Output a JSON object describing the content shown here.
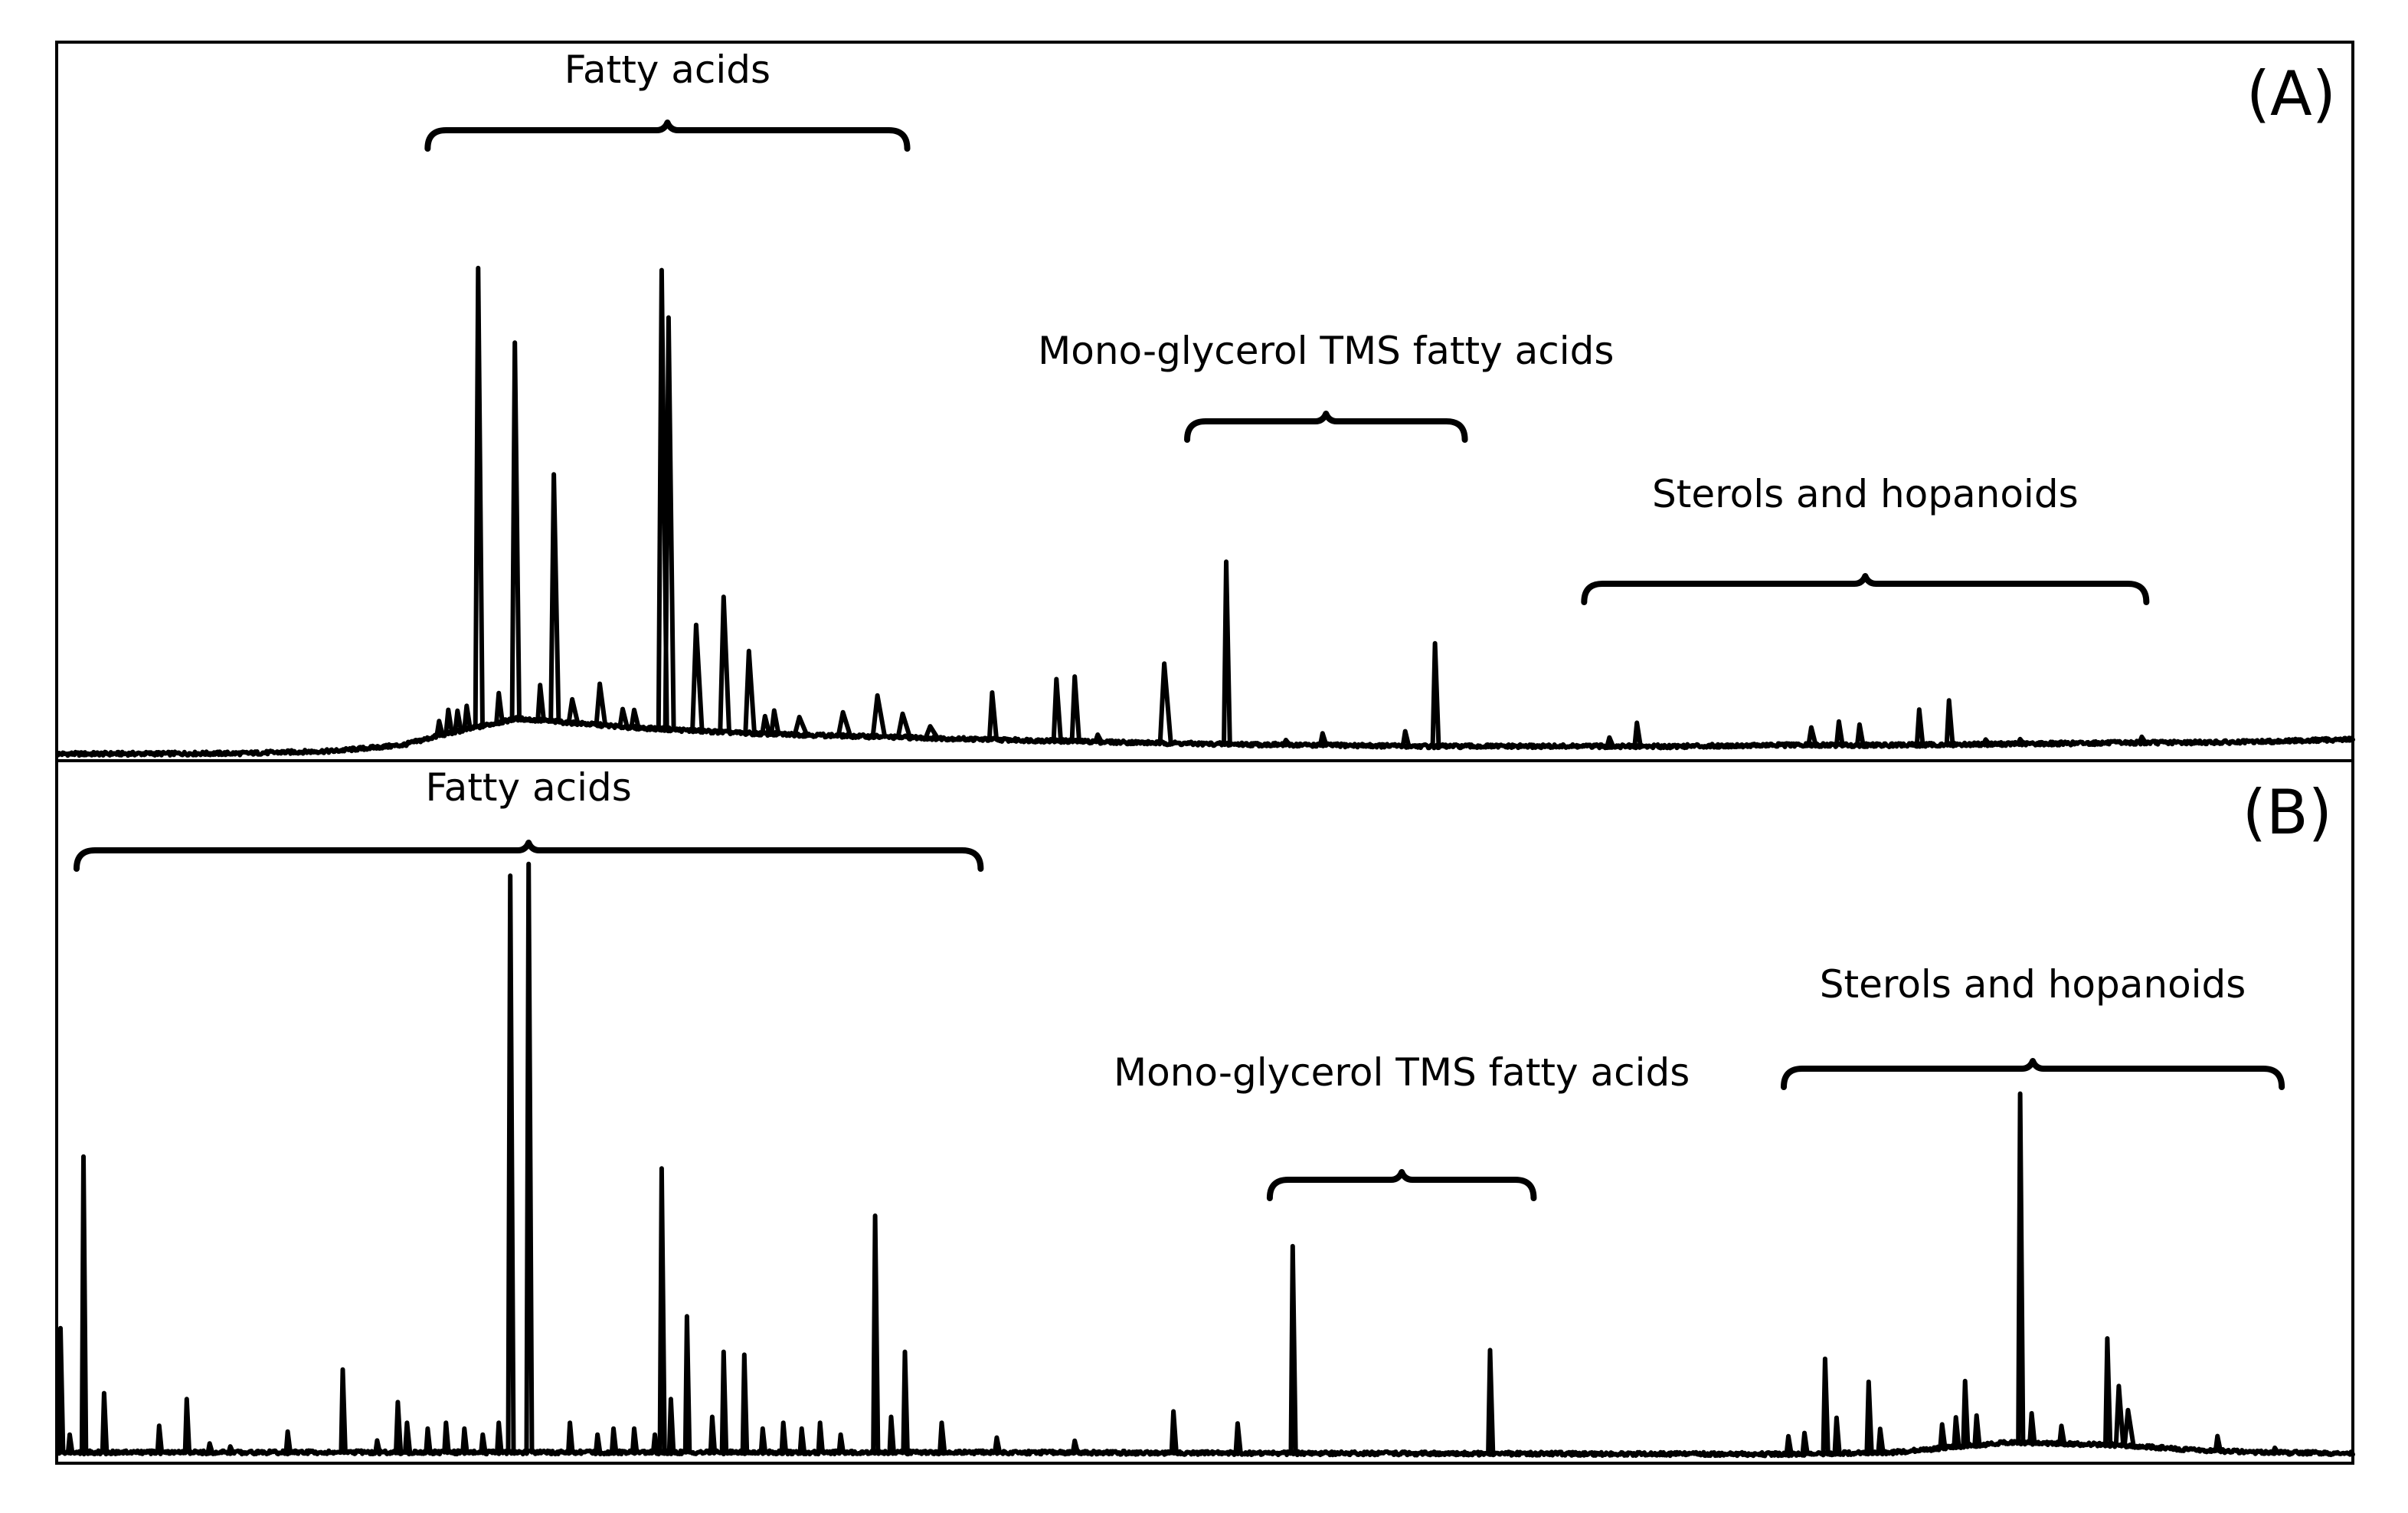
{
  "chart_data": [
    {
      "type": "line",
      "panel_label": "(A)",
      "title": "",
      "xlabel": "",
      "ylabel": "",
      "xlim": [
        0,
        100
      ],
      "ylim": [
        0,
        100
      ],
      "baseline_points": [
        [
          0,
          0.5
        ],
        [
          8,
          0.6
        ],
        [
          12,
          1.0
        ],
        [
          15,
          2
        ],
        [
          17,
          4
        ],
        [
          20,
          6.5
        ],
        [
          25,
          5
        ],
        [
          30,
          4
        ],
        [
          35,
          3.5
        ],
        [
          40,
          3
        ],
        [
          45,
          2.6
        ],
        [
          50,
          2.2
        ],
        [
          55,
          2
        ],
        [
          60,
          1.8
        ],
        [
          65,
          1.8
        ],
        [
          70,
          1.8
        ],
        [
          75,
          2
        ],
        [
          80,
          2
        ],
        [
          85,
          2.2
        ],
        [
          90,
          2.4
        ],
        [
          95,
          2.5
        ],
        [
          100,
          3
        ]
      ],
      "peaks": [
        {
          "x": 16.6,
          "h": 2.5,
          "w": 0.1
        },
        {
          "x": 17.0,
          "h": 4,
          "w": 0.1
        },
        {
          "x": 17.4,
          "h": 3.5,
          "w": 0.1
        },
        {
          "x": 17.8,
          "h": 4,
          "w": 0.1
        },
        {
          "x": 18.3,
          "h": 78,
          "w": 0.12
        },
        {
          "x": 19.2,
          "h": 5,
          "w": 0.1
        },
        {
          "x": 19.9,
          "h": 64,
          "w": 0.12
        },
        {
          "x": 21.0,
          "h": 6,
          "w": 0.1
        },
        {
          "x": 21.6,
          "h": 42,
          "w": 0.13
        },
        {
          "x": 22.4,
          "h": 4,
          "w": 0.15
        },
        {
          "x": 23.6,
          "h": 7,
          "w": 0.15
        },
        {
          "x": 24.6,
          "h": 3,
          "w": 0.12
        },
        {
          "x": 25.1,
          "h": 3,
          "w": 0.12
        },
        {
          "x": 26.3,
          "h": 78,
          "w": 0.14
        },
        {
          "x": 26.6,
          "h": 70,
          "w": 0.14
        },
        {
          "x": 27.8,
          "h": 18,
          "w": 0.16
        },
        {
          "x": 29.0,
          "h": 23,
          "w": 0.15
        },
        {
          "x": 30.1,
          "h": 14,
          "w": 0.15
        },
        {
          "x": 30.8,
          "h": 3,
          "w": 0.12
        },
        {
          "x": 31.2,
          "h": 4,
          "w": 0.12
        },
        {
          "x": 32.3,
          "h": 3,
          "w": 0.2
        },
        {
          "x": 34.2,
          "h": 4,
          "w": 0.2
        },
        {
          "x": 35.7,
          "h": 7,
          "w": 0.2
        },
        {
          "x": 36.8,
          "h": 4,
          "w": 0.2
        },
        {
          "x": 38.0,
          "h": 2,
          "w": 0.2
        },
        {
          "x": 40.7,
          "h": 8,
          "w": 0.12
        },
        {
          "x": 43.5,
          "h": 10.5,
          "w": 0.12
        },
        {
          "x": 44.3,
          "h": 11,
          "w": 0.12
        },
        {
          "x": 45.3,
          "h": 1.2,
          "w": 0.1
        },
        {
          "x": 48.2,
          "h": 13.5,
          "w": 0.18
        },
        {
          "x": 50.9,
          "h": 31,
          "w": 0.1
        },
        {
          "x": 53.5,
          "h": 0.8,
          "w": 0.1
        },
        {
          "x": 55.1,
          "h": 2,
          "w": 0.1
        },
        {
          "x": 58.7,
          "h": 2.5,
          "w": 0.1
        },
        {
          "x": 60.0,
          "h": 17.5,
          "w": 0.1
        },
        {
          "x": 67.6,
          "h": 1.5,
          "w": 0.1
        },
        {
          "x": 68.8,
          "h": 4,
          "w": 0.1
        },
        {
          "x": 76.4,
          "h": 3,
          "w": 0.12
        },
        {
          "x": 77.6,
          "h": 4,
          "w": 0.1
        },
        {
          "x": 78.5,
          "h": 3.5,
          "w": 0.1
        },
        {
          "x": 81.1,
          "h": 6,
          "w": 0.1
        },
        {
          "x": 82.4,
          "h": 7.5,
          "w": 0.1
        },
        {
          "x": 84.0,
          "h": 0.8,
          "w": 0.1
        },
        {
          "x": 85.5,
          "h": 0.8,
          "w": 0.1
        },
        {
          "x": 90.8,
          "h": 1.0,
          "w": 0.1
        }
      ],
      "annotations": [
        {
          "text": "Fatty acids",
          "x_start": 16.1,
          "x_end": 37.0
        },
        {
          "text": "Mono-glycerol TMS fatty acids",
          "x_start": 49.2,
          "x_end": 61.3
        },
        {
          "text": "Sterols and hopanoids",
          "x_start": 66.5,
          "x_end": 91.0
        }
      ]
    },
    {
      "type": "line",
      "panel_label": "(B)",
      "title": "",
      "xlabel": "",
      "ylabel": "",
      "xlim": [
        0,
        100
      ],
      "ylim": [
        0,
        100
      ],
      "baseline_points": [
        [
          0,
          0.8
        ],
        [
          20,
          0.8
        ],
        [
          40,
          0.8
        ],
        [
          60,
          0.6
        ],
        [
          75,
          0.5
        ],
        [
          80,
          0.8
        ],
        [
          85,
          2.5
        ],
        [
          90,
          2
        ],
        [
          93,
          1.2
        ],
        [
          96,
          0.8
        ],
        [
          100,
          0.6
        ]
      ],
      "peaks": [
        {
          "x": 0.1,
          "h": 21,
          "w": 0.07
        },
        {
          "x": 0.5,
          "h": 3,
          "w": 0.07
        },
        {
          "x": 1.1,
          "h": 50,
          "w": 0.07
        },
        {
          "x": 2.0,
          "h": 10,
          "w": 0.07
        },
        {
          "x": 4.4,
          "h": 4.5,
          "w": 0.07
        },
        {
          "x": 5.6,
          "h": 9,
          "w": 0.07
        },
        {
          "x": 6.6,
          "h": 1.5,
          "w": 0.07
        },
        {
          "x": 7.5,
          "h": 1,
          "w": 0.07
        },
        {
          "x": 10.0,
          "h": 3.5,
          "w": 0.07
        },
        {
          "x": 12.4,
          "h": 14,
          "w": 0.07
        },
        {
          "x": 13.9,
          "h": 2,
          "w": 0.07
        },
        {
          "x": 14.8,
          "h": 8.5,
          "w": 0.08
        },
        {
          "x": 15.2,
          "h": 5,
          "w": 0.08
        },
        {
          "x": 16.1,
          "h": 4,
          "w": 0.07
        },
        {
          "x": 16.9,
          "h": 5,
          "w": 0.07
        },
        {
          "x": 17.7,
          "h": 4,
          "w": 0.07
        },
        {
          "x": 18.5,
          "h": 3,
          "w": 0.07
        },
        {
          "x": 19.2,
          "h": 5,
          "w": 0.07
        },
        {
          "x": 19.7,
          "h": 97.5,
          "w": 0.09
        },
        {
          "x": 20.5,
          "h": 99.5,
          "w": 0.09
        },
        {
          "x": 22.3,
          "h": 5,
          "w": 0.07
        },
        {
          "x": 23.5,
          "h": 3,
          "w": 0.07
        },
        {
          "x": 24.2,
          "h": 4,
          "w": 0.07
        },
        {
          "x": 25.1,
          "h": 4,
          "w": 0.07
        },
        {
          "x": 26.0,
          "h": 3,
          "w": 0.07
        },
        {
          "x": 26.7,
          "h": 9,
          "w": 0.07
        },
        {
          "x": 26.3,
          "h": 48,
          "w": 0.08
        },
        {
          "x": 27.4,
          "h": 23,
          "w": 0.07
        },
        {
          "x": 28.5,
          "h": 6,
          "w": 0.07
        },
        {
          "x": 29.0,
          "h": 17,
          "w": 0.07
        },
        {
          "x": 29.9,
          "h": 16.5,
          "w": 0.07
        },
        {
          "x": 30.7,
          "h": 4,
          "w": 0.07
        },
        {
          "x": 31.6,
          "h": 5,
          "w": 0.07
        },
        {
          "x": 32.4,
          "h": 4,
          "w": 0.07
        },
        {
          "x": 33.2,
          "h": 5,
          "w": 0.07
        },
        {
          "x": 34.1,
          "h": 3,
          "w": 0.07
        },
        {
          "x": 35.6,
          "h": 40,
          "w": 0.08
        },
        {
          "x": 36.3,
          "h": 6,
          "w": 0.07
        },
        {
          "x": 36.9,
          "h": 17,
          "w": 0.07
        },
        {
          "x": 38.5,
          "h": 5,
          "w": 0.08
        },
        {
          "x": 40.9,
          "h": 2.5,
          "w": 0.08
        },
        {
          "x": 44.3,
          "h": 2,
          "w": 0.08
        },
        {
          "x": 48.6,
          "h": 7,
          "w": 0.08
        },
        {
          "x": 51.4,
          "h": 5,
          "w": 0.08
        },
        {
          "x": 53.8,
          "h": 35,
          "w": 0.08
        },
        {
          "x": 62.4,
          "h": 17.5,
          "w": 0.08
        },
        {
          "x": 75.4,
          "h": 3,
          "w": 0.08
        },
        {
          "x": 76.1,
          "h": 3.5,
          "w": 0.08
        },
        {
          "x": 77.0,
          "h": 16,
          "w": 0.08
        },
        {
          "x": 77.5,
          "h": 6,
          "w": 0.08
        },
        {
          "x": 78.9,
          "h": 12,
          "w": 0.08
        },
        {
          "x": 79.4,
          "h": 4,
          "w": 0.08
        },
        {
          "x": 82.1,
          "h": 4,
          "w": 0.08
        },
        {
          "x": 82.7,
          "h": 5,
          "w": 0.08
        },
        {
          "x": 83.1,
          "h": 11,
          "w": 0.08
        },
        {
          "x": 83.6,
          "h": 5,
          "w": 0.08
        },
        {
          "x": 85.5,
          "h": 59,
          "w": 0.08
        },
        {
          "x": 86.0,
          "h": 5,
          "w": 0.08
        },
        {
          "x": 87.3,
          "h": 3,
          "w": 0.08
        },
        {
          "x": 89.3,
          "h": 18,
          "w": 0.08
        },
        {
          "x": 89.8,
          "h": 10,
          "w": 0.12
        },
        {
          "x": 90.2,
          "h": 6,
          "w": 0.15
        },
        {
          "x": 94.1,
          "h": 2.5,
          "w": 0.08
        },
        {
          "x": 96.6,
          "h": 0.8,
          "w": 0.08
        }
      ],
      "annotations": [
        {
          "text": "Fatty acids",
          "x_start": 0.8,
          "x_end": 40.2
        },
        {
          "text": "Mono-glycerol TMS fatty acids",
          "x_start": 52.8,
          "x_end": 64.3
        },
        {
          "text": "Sterols and hopanoids",
          "x_start": 75.2,
          "x_end": 96.9
        }
      ]
    }
  ]
}
